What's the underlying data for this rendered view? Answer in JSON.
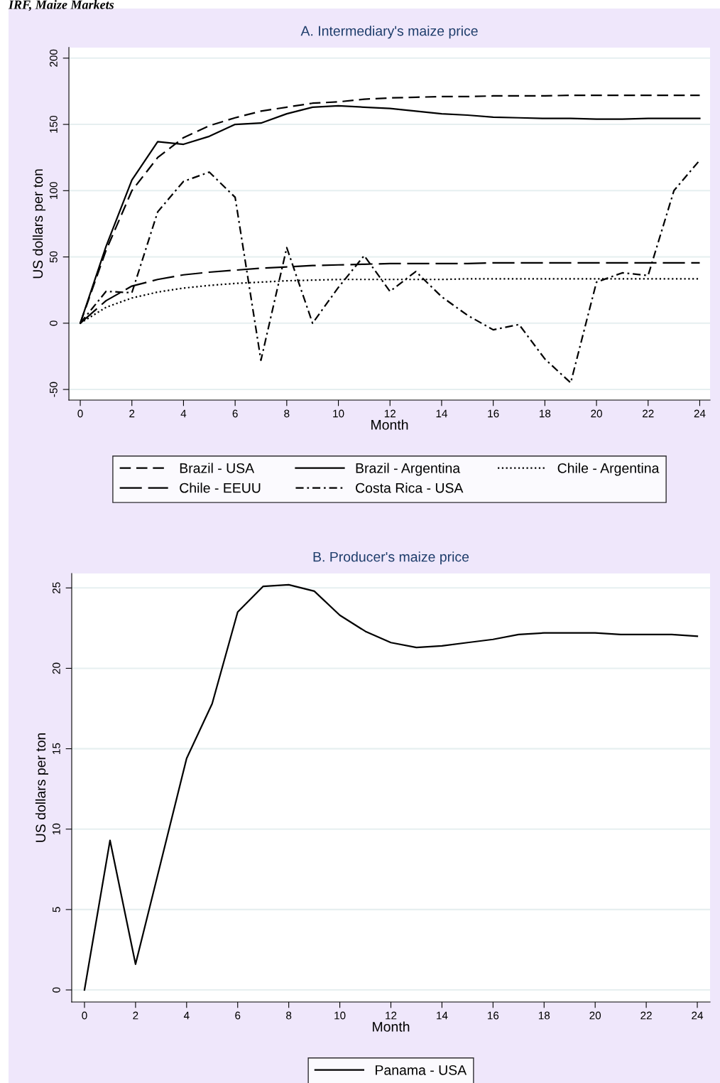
{
  "chart_data": [
    {
      "type": "line",
      "title": "A. Intermediary's maize price",
      "xlabel": "Month",
      "ylabel": "US dollars per ton",
      "annotations": [
        "IRF, Maize Markets"
      ],
      "x": [
        0,
        1,
        2,
        3,
        4,
        5,
        6,
        7,
        8,
        9,
        10,
        11,
        12,
        13,
        14,
        15,
        16,
        17,
        18,
        19,
        20,
        21,
        22,
        23,
        24
      ],
      "series": [
        {
          "name": "Brazil - USA",
          "color": "#000000",
          "line_style": "dashed",
          "values": [
            0,
            55,
            100,
            125,
            140,
            149,
            155,
            160,
            163,
            166,
            167,
            169,
            170,
            170.5,
            171,
            171,
            171.5,
            171.5,
            171.5,
            172,
            172,
            172,
            172,
            172,
            172
          ]
        },
        {
          "name": "Brazil - Argentina",
          "color": "#000000",
          "line_style": "solid",
          "values": [
            0,
            58,
            108,
            137,
            135,
            141,
            150,
            151,
            158,
            163,
            164,
            163,
            162,
            160,
            158,
            157,
            155.5,
            155,
            154.5,
            154.5,
            154,
            154,
            154.5,
            154.5,
            154.5
          ]
        },
        {
          "name": "Chile - Argentina",
          "color": "#000000",
          "line_style": "dotted",
          "values": [
            0,
            12,
            19,
            23.5,
            26.5,
            28.5,
            30,
            31,
            32,
            32.5,
            33,
            33,
            33,
            33,
            33,
            33.5,
            33.5,
            33.5,
            33.5,
            33.5,
            33.5,
            33.5,
            33.5,
            33.5,
            33.5
          ]
        },
        {
          "name": "Chile - EEUU",
          "color": "#000000",
          "line_style": "longdash",
          "values": [
            0,
            17,
            28,
            33,
            36.5,
            38.5,
            40,
            41.5,
            42.5,
            43.5,
            44,
            44.5,
            45,
            45,
            45,
            45,
            45.5,
            45.5,
            45.5,
            45.5,
            45.5,
            45.5,
            45.5,
            45.5,
            45.5
          ]
        },
        {
          "name": "Costa Rica - USA",
          "color": "#000000",
          "line_style": "dashdot",
          "values": [
            0,
            24,
            23,
            84,
            107,
            114,
            95,
            -28,
            57,
            0,
            27,
            51,
            24,
            39,
            20,
            6,
            -5,
            -1,
            -27,
            -45,
            31,
            38,
            36,
            100,
            123
          ]
        }
      ],
      "xlim": [
        -0.44,
        24.4
      ],
      "ylim": [
        -58,
        208
      ],
      "xticks": [
        0,
        2,
        4,
        6,
        8,
        10,
        12,
        14,
        16,
        18,
        20,
        22,
        24
      ],
      "yticks": [
        -50,
        0,
        50,
        100,
        150,
        200
      ],
      "grid": "y",
      "legend": "bottom"
    },
    {
      "type": "line",
      "title": "B. Producer's maize price",
      "xlabel": "Month",
      "ylabel": "US dollars per ton",
      "x": [
        0,
        1,
        2,
        3,
        4,
        5,
        6,
        7,
        8,
        9,
        10,
        11,
        12,
        13,
        14,
        15,
        16,
        17,
        18,
        19,
        20,
        21,
        22,
        23,
        24
      ],
      "series": [
        {
          "name": "Panama - USA",
          "color": "#000000",
          "line_style": "solid",
          "values": [
            0,
            9.3,
            1.6,
            8,
            14.4,
            17.8,
            23.5,
            25.1,
            25.2,
            24.8,
            23.3,
            22.3,
            21.6,
            21.3,
            21.4,
            21.6,
            21.8,
            22.1,
            22.2,
            22.2,
            22.2,
            22.1,
            22.1,
            22.1,
            22.0
          ]
        }
      ],
      "xlim": [
        -0.5,
        24.5
      ],
      "ylim": [
        -0.75,
        25.9
      ],
      "xticks": [
        0,
        2,
        4,
        6,
        8,
        10,
        12,
        14,
        16,
        18,
        20,
        22,
        24
      ],
      "yticks": [
        0,
        5,
        10,
        15,
        20,
        25
      ],
      "grid": "y",
      "legend": "bottom"
    }
  ]
}
